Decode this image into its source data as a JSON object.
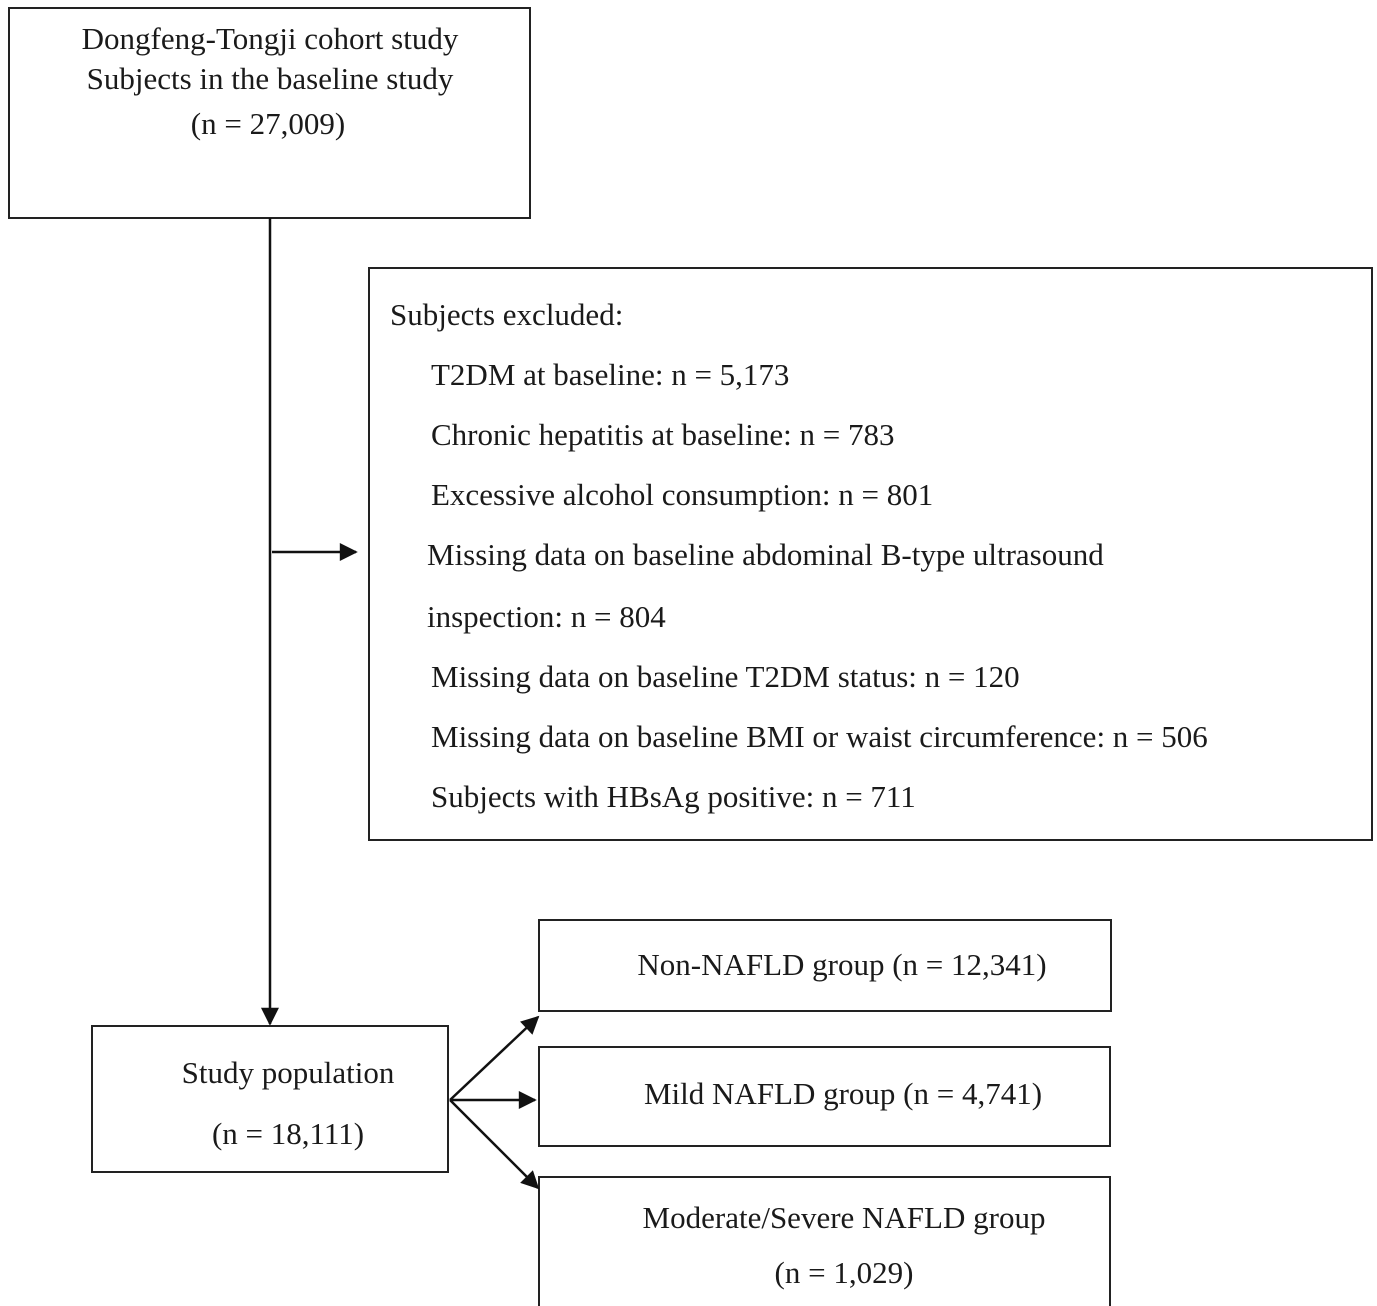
{
  "nodes": [
    {
      "lines": [
        "Dongfeng-Tongji cohort study",
        "Subjects in the baseline study",
        "(n = 27,009)"
      ]
    },
    {
      "heading": "Subjects excluded:",
      "lines": [
        "T2DM at baseline: n = 5,173",
        "Chronic hepatitis at baseline: n = 783",
        "Excessive alcohol consumption: n = 801",
        "Missing data on baseline abdominal B-type ultrasound",
        "inspection: n = 804",
        "Missing data on baseline T2DM status: n = 120",
        "Missing data on baseline BMI or waist circumference: n = 506",
        "Subjects with HBsAg positive: n = 711"
      ]
    },
    {
      "lines": [
        "Study population",
        "(n = 18,111)"
      ]
    },
    {
      "lines": [
        "Non-NAFLD group (n = 12,341)"
      ]
    },
    {
      "lines": [
        "Mild NAFLD group (n = 4,741)"
      ]
    },
    {
      "lines": [
        "Moderate/Severe NAFLD group",
        "(n = 1,029)"
      ]
    }
  ]
}
